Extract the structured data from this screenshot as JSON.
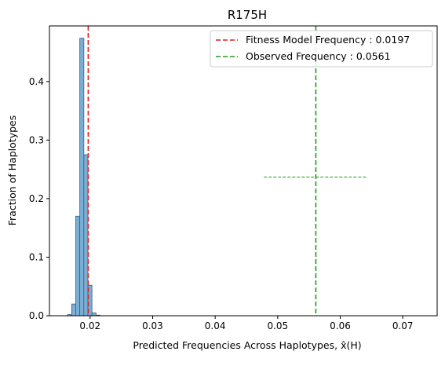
{
  "chart_data": {
    "type": "histogram",
    "title": "R175H",
    "xlabel": "Predicted Frequencies Across Haplotypes, x̂(H)",
    "ylabel": "Fraction of Haplotypes",
    "xlim": [
      0.0135,
      0.0755
    ],
    "ylim": [
      0,
      0.495
    ],
    "x_ticks": [
      0.02,
      0.03,
      0.04,
      0.05,
      0.06,
      0.07
    ],
    "x_tick_labels": [
      "0.02",
      "0.03",
      "0.04",
      "0.05",
      "0.06",
      "0.07"
    ],
    "y_ticks": [
      0.0,
      0.1,
      0.2,
      0.3,
      0.4
    ],
    "y_tick_labels": [
      "0.0",
      "0.1",
      "0.2",
      "0.3",
      "0.4"
    ],
    "grid": false,
    "legend_position": "top-right",
    "bin_width": 0.00065,
    "bins": [
      {
        "x0": 0.0164,
        "value": 0.002
      },
      {
        "x0": 0.01705,
        "value": 0.02
      },
      {
        "x0": 0.0177,
        "value": 0.17
      },
      {
        "x0": 0.01835,
        "value": 0.474
      },
      {
        "x0": 0.019,
        "value": 0.275
      },
      {
        "x0": 0.01965,
        "value": 0.052
      },
      {
        "x0": 0.0203,
        "value": 0.005
      },
      {
        "x0": 0.02095,
        "value": 0.001
      }
    ],
    "bar_color": "#7aaed5",
    "bar_edge_color": "#3c5f7f",
    "reference_lines": [
      {
        "name": "Fitness Model Frequency : 0.0197",
        "x": 0.0197,
        "color": "#e31a1c",
        "style": "dashed"
      },
      {
        "name": "Observed Frequency : 0.0561",
        "x": 0.0561,
        "color": "#1a9e1a",
        "style": "dashed"
      }
    ],
    "error_bar": {
      "y": 0.237,
      "xmin": 0.0478,
      "xmax": 0.0644,
      "color": "#1a9e1a",
      "style": "dashed"
    }
  }
}
